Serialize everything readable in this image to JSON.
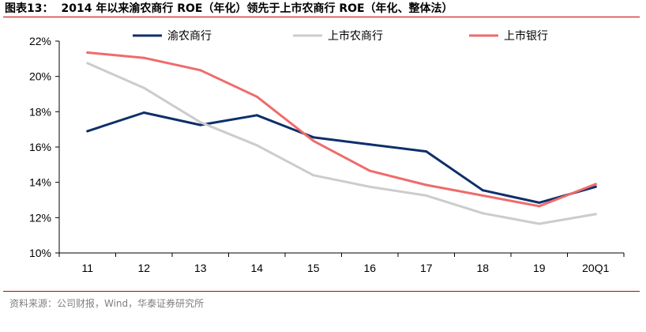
{
  "header": {
    "figure_label": "图表13：",
    "title": "2014 年以来渝农商行 ROE（年化）领先于上市农商行 ROE（年化、整体法）"
  },
  "footer": {
    "source": "资料来源：公司财报，Wind，华泰证券研究所"
  },
  "colors": {
    "accent_rule": "#c00000",
    "series_1": "#0f2f6b",
    "series_2": "#cccccc",
    "series_3": "#ef6b6b"
  },
  "chart_data": {
    "type": "line",
    "title": "",
    "xlabel": "",
    "ylabel": "",
    "categories": [
      "11",
      "12",
      "13",
      "14",
      "15",
      "16",
      "17",
      "18",
      "19",
      "20Q1"
    ],
    "ylim": [
      10,
      22
    ],
    "yticks": [
      10,
      12,
      14,
      16,
      18,
      20,
      22
    ],
    "ytick_labels": [
      "10%",
      "12%",
      "14%",
      "16%",
      "18%",
      "20%",
      "22%"
    ],
    "legend_position": "top",
    "grid": false,
    "series": [
      {
        "name": "渝农商行",
        "color": "#0f2f6b",
        "values": [
          16.9,
          17.95,
          17.25,
          17.8,
          16.55,
          16.15,
          15.75,
          13.55,
          12.85,
          13.75
        ]
      },
      {
        "name": "上市农商行",
        "color": "#cccccc",
        "values": [
          20.75,
          19.35,
          17.4,
          16.1,
          14.4,
          13.75,
          13.25,
          12.25,
          11.65,
          12.2
        ]
      },
      {
        "name": "上市银行",
        "color": "#ef6b6b",
        "values": [
          21.35,
          21.05,
          20.35,
          18.85,
          16.35,
          14.65,
          13.85,
          13.25,
          12.65,
          13.9
        ]
      }
    ]
  }
}
